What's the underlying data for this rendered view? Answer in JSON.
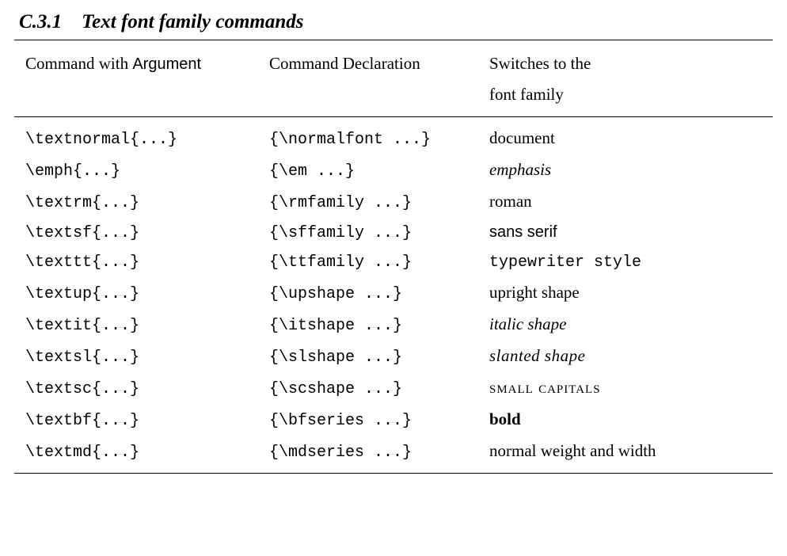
{
  "heading": "C.3.1 Text font family commands",
  "columns": [
    "Command with ",
    "Argument",
    "Command Declaration",
    "Switches to the\nfont family"
  ],
  "rows": [
    {
      "cmd": "\\textnormal{...}",
      "decl": "{\\normalfont ...}",
      "sw": "document",
      "cls": ""
    },
    {
      "cmd": "\\emph{...}",
      "decl": "{\\em ...}",
      "sw": "emphasis",
      "cls": "it"
    },
    {
      "cmd": "\\textrm{...}",
      "decl": "{\\rmfamily ...}",
      "sw": "roman",
      "cls": ""
    },
    {
      "cmd": "\\textsf{...}",
      "decl": "{\\sffamily ...}",
      "sw": "sans serif",
      "cls": "sf"
    },
    {
      "cmd": "\\texttt{...}",
      "decl": "{\\ttfamily ...}",
      "sw": "typewriter style",
      "cls": "tt"
    },
    {
      "cmd": "\\textup{...}",
      "decl": "{\\upshape ...}",
      "sw": "upright shape",
      "cls": ""
    },
    {
      "cmd": "\\textit{...}",
      "decl": "{\\itshape ...}",
      "sw": "italic shape",
      "cls": "it"
    },
    {
      "cmd": "\\textsl{...}",
      "decl": "{\\slshape ...}",
      "sw": "slanted shape",
      "cls": "sl"
    },
    {
      "cmd": "\\textsc{...}",
      "decl": "{\\scshape ...}",
      "sw": "small capitals",
      "cls": "sc"
    },
    {
      "cmd": "\\textbf{...}",
      "decl": "{\\bfseries ...}",
      "sw": "bold",
      "cls": "bf"
    },
    {
      "cmd": "\\textmd{...}",
      "decl": "{\\mdseries ...}",
      "sw": "normal weight and width",
      "cls": ""
    }
  ]
}
